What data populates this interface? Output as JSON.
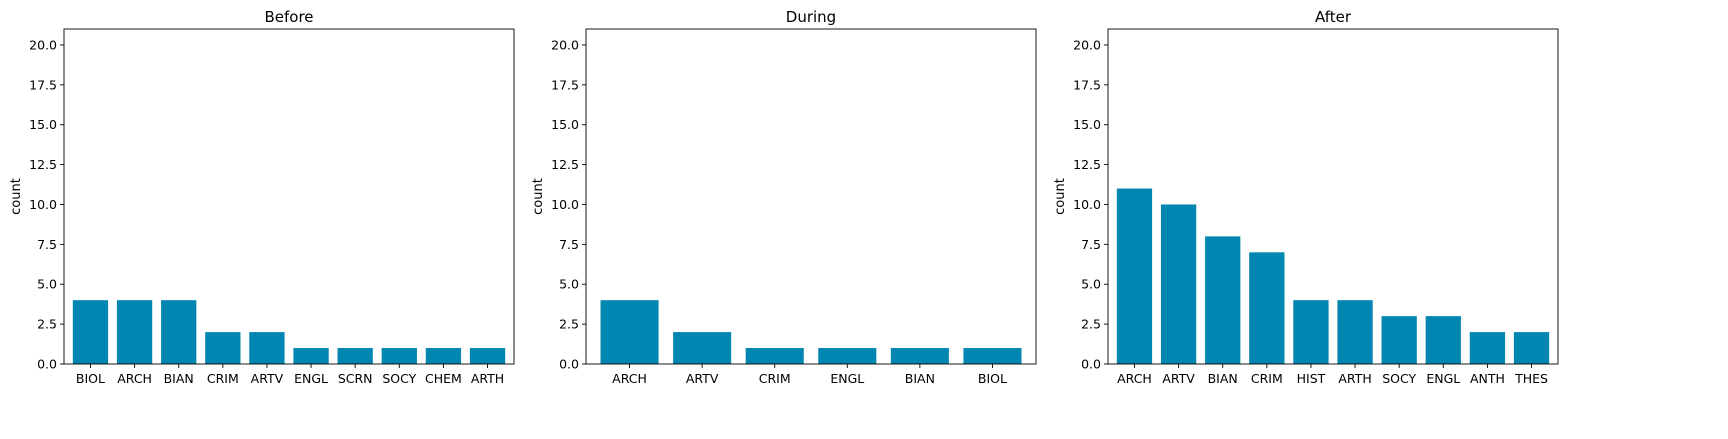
{
  "colors": {
    "bar": "#0086b0",
    "axis": "#000000",
    "background": "#ffffff"
  },
  "chart_data": [
    {
      "type": "bar",
      "title": "Before",
      "ylabel": "count",
      "ylim": [
        0,
        21
      ],
      "yticks": [
        "0.0",
        "2.5",
        "5.0",
        "7.5",
        "10.0",
        "12.5",
        "15.0",
        "17.5",
        "20.0"
      ],
      "categories": [
        "BIOL",
        "ARCH",
        "BIAN",
        "CRIM",
        "ARTV",
        "ENGL",
        "SCRN",
        "SOCY",
        "CHEM",
        "ARTH"
      ],
      "values": [
        4,
        4,
        4,
        2,
        2,
        1,
        1,
        1,
        1,
        1
      ]
    },
    {
      "type": "bar",
      "title": "During",
      "ylabel": "count",
      "ylim": [
        0,
        21
      ],
      "yticks": [
        "0.0",
        "2.5",
        "5.0",
        "7.5",
        "10.0",
        "12.5",
        "15.0",
        "17.5",
        "20.0"
      ],
      "categories": [
        "ARCH",
        "ARTV",
        "CRIM",
        "ENGL",
        "BIAN",
        "BIOL"
      ],
      "values": [
        4,
        2,
        1,
        1,
        1,
        1
      ]
    },
    {
      "type": "bar",
      "title": "After",
      "ylabel": "count",
      "ylim": [
        0,
        21
      ],
      "yticks": [
        "0.0",
        "2.5",
        "5.0",
        "7.5",
        "10.0",
        "12.5",
        "15.0",
        "17.5",
        "20.0"
      ],
      "categories": [
        "ARCH",
        "ARTV",
        "BIAN",
        "CRIM",
        "HIST",
        "ARTH",
        "SOCY",
        "ENGL",
        "ANTH",
        "THES"
      ],
      "values": [
        11,
        10,
        8,
        7,
        4,
        4,
        3,
        3,
        2,
        2
      ]
    }
  ]
}
